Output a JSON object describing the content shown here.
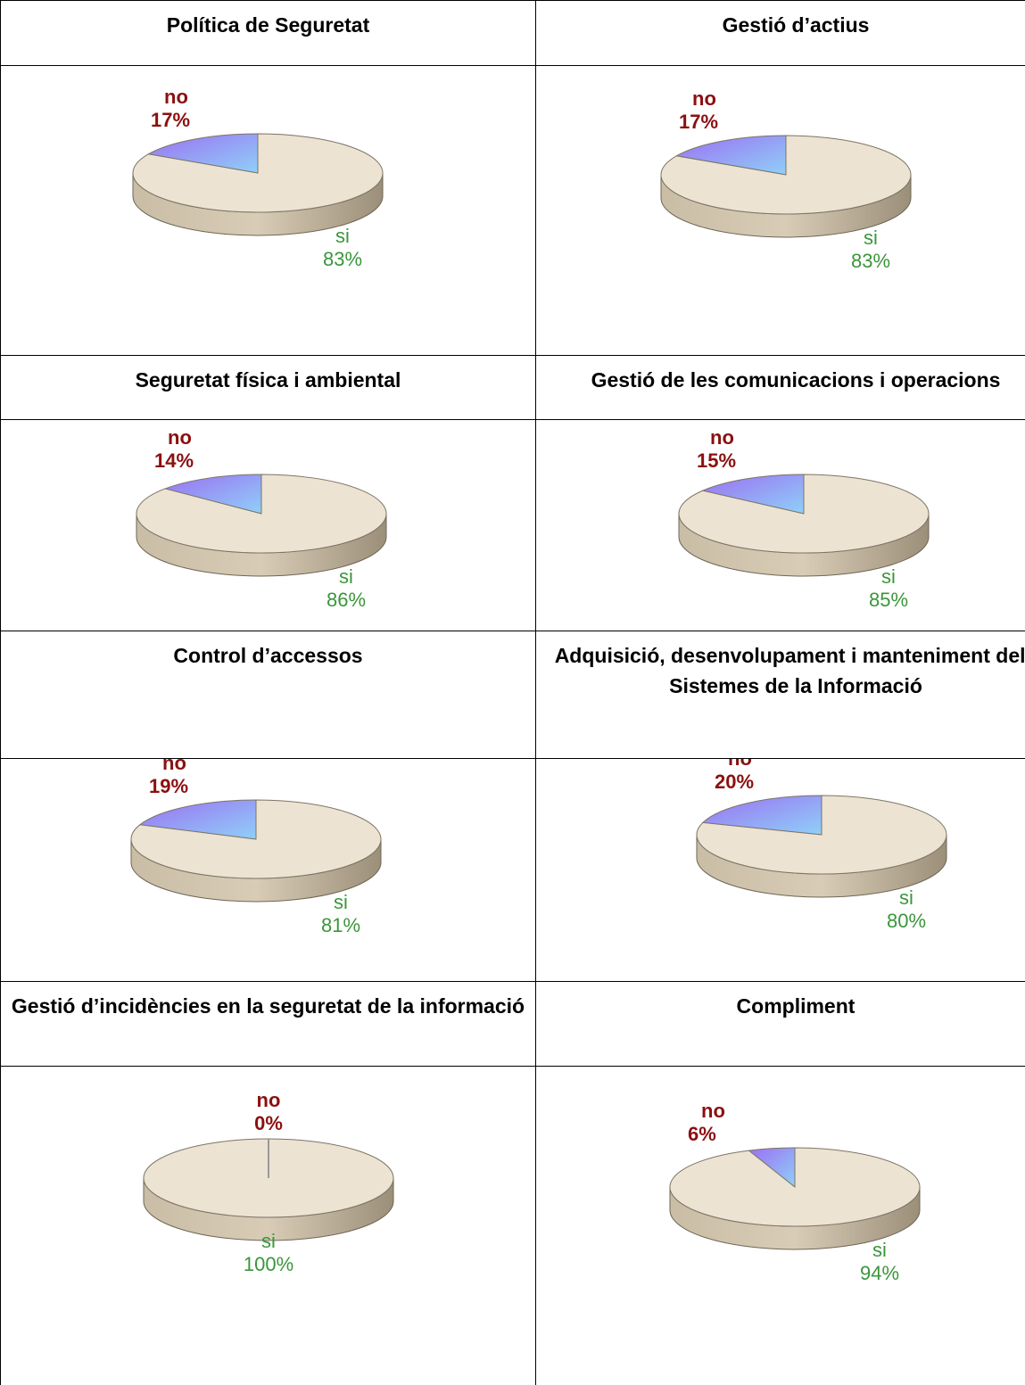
{
  "chart_data": [
    {
      "type": "pie",
      "title": "Política de Seguretat",
      "categories": [
        "no",
        "si"
      ],
      "values": [
        17,
        83
      ],
      "value_labels": [
        "17%",
        "83%"
      ],
      "colors": [
        "#9b6ff2",
        "#ece3d3"
      ]
    },
    {
      "type": "pie",
      "title": "Gestió d’actius",
      "categories": [
        "no",
        "si"
      ],
      "values": [
        17,
        83
      ],
      "value_labels": [
        "17%",
        "83%"
      ],
      "colors": [
        "#9b6ff2",
        "#ece3d3"
      ]
    },
    {
      "type": "pie",
      "title": "Seguretat física i ambiental",
      "categories": [
        "no",
        "si"
      ],
      "values": [
        14,
        86
      ],
      "value_labels": [
        "14%",
        "86%"
      ],
      "colors": [
        "#9b6ff2",
        "#ece3d3"
      ]
    },
    {
      "type": "pie",
      "title": "Gestió de les comunicacions i operacions",
      "categories": [
        "no",
        "si"
      ],
      "values": [
        15,
        85
      ],
      "value_labels": [
        "15%",
        "85%"
      ],
      "colors": [
        "#9b6ff2",
        "#ece3d3"
      ]
    },
    {
      "type": "pie",
      "title": "Control d’accessos",
      "categories": [
        "no",
        "si"
      ],
      "values": [
        19,
        81
      ],
      "value_labels": [
        "19%",
        "81%"
      ],
      "colors": [
        "#9b6ff2",
        "#ece3d3"
      ]
    },
    {
      "type": "pie",
      "title": "Adquisició, desenvolupament i manteniment dels Sistemes de la Informació",
      "categories": [
        "no",
        "si"
      ],
      "values": [
        20,
        80
      ],
      "value_labels": [
        "20%",
        "80%"
      ],
      "colors": [
        "#9b6ff2",
        "#ece3d3"
      ]
    },
    {
      "type": "pie",
      "title": "Gestió d’incidències en la seguretat de la informació",
      "categories": [
        "no",
        "si"
      ],
      "values": [
        0,
        100
      ],
      "value_labels": [
        "0%",
        "100%"
      ],
      "colors": [
        "#9b6ff2",
        "#ece3d3"
      ]
    },
    {
      "type": "pie",
      "title": "Compliment",
      "categories": [
        "no",
        "si"
      ],
      "values": [
        6,
        94
      ],
      "value_labels": [
        "6%",
        "94%"
      ],
      "colors": [
        "#9b6ff2",
        "#ece3d3"
      ]
    }
  ]
}
